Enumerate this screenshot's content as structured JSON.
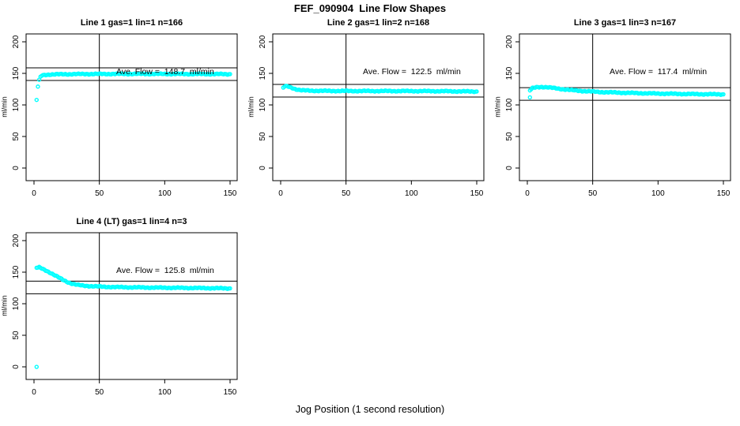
{
  "page": {
    "title": "FEF_090904  Line Flow Shapes",
    "xlabel": "Jog Position (1 second resolution)",
    "background": "#ffffff",
    "axis_color": "#000000"
  },
  "chart_data": [
    {
      "type": "scatter",
      "title": "Line 1 gas=1 lin=1 n=166",
      "ylabel": "ml/min",
      "ave_flow": 148.7,
      "ave_flow_label": "Ave. Flow =  148.7  ml/min",
      "n": 166,
      "point_color": "#00ffff",
      "marker": "open-circle",
      "xlim": [
        -6,
        154.5
      ],
      "ylim": [
        -20,
        212.5
      ],
      "xticks": [
        "0",
        "50",
        "100",
        "150"
      ],
      "yticks": [
        "0",
        "50",
        "100",
        "150",
        "200"
      ],
      "vline_x": 50,
      "hlines": [
        158.7,
        138.7
      ],
      "x_step": 1,
      "points": [
        [
          2,
          108
        ],
        [
          3,
          129
        ],
        [
          4,
          139
        ],
        [
          5,
          144.5
        ],
        [
          6,
          146.5
        ],
        [
          8,
          147.5
        ],
        [
          12,
          148.2
        ],
        [
          20,
          148.6
        ],
        [
          40,
          149
        ],
        [
          80,
          149.2
        ],
        [
          120,
          149
        ],
        [
          150,
          148.8
        ]
      ],
      "extra_points": []
    },
    {
      "type": "scatter",
      "title": "Line 2 gas=1 lin=2 n=168",
      "ylabel": "ml/min",
      "ave_flow": 122.5,
      "ave_flow_label": "Ave. Flow =  122.5  ml/min",
      "n": 168,
      "point_color": "#00ffff",
      "marker": "open-circle",
      "xlim": [
        -6,
        154.5
      ],
      "ylim": [
        -20,
        212.5
      ],
      "xticks": [
        "0",
        "50",
        "100",
        "150"
      ],
      "yticks": [
        "0",
        "50",
        "100",
        "150",
        "200"
      ],
      "vline_x": 50,
      "hlines": [
        132.5,
        112.5
      ],
      "x_step": 1,
      "points": [
        [
          2,
          127.5
        ],
        [
          3,
          129
        ],
        [
          5,
          129.5
        ],
        [
          8,
          127.5
        ],
        [
          12,
          124.8
        ],
        [
          16,
          123.2
        ],
        [
          22,
          122.6
        ],
        [
          35,
          122.2
        ],
        [
          60,
          122
        ],
        [
          90,
          122
        ],
        [
          120,
          121.8
        ],
        [
          150,
          121.2
        ]
      ],
      "extra_points": []
    },
    {
      "type": "scatter",
      "title": "Line 3 gas=1 lin=3 n=167",
      "ylabel": "ml/min",
      "ave_flow": 117.4,
      "ave_flow_label": "Ave. Flow =  117.4  ml/min",
      "n": 167,
      "point_color": "#00ffff",
      "marker": "open-circle",
      "xlim": [
        -6,
        154.5
      ],
      "ylim": [
        -20,
        212.5
      ],
      "xticks": [
        "0",
        "50",
        "100",
        "150"
      ],
      "yticks": [
        "0",
        "50",
        "100",
        "150",
        "200"
      ],
      "vline_x": 50,
      "hlines": [
        127.4,
        107.4
      ],
      "x_step": 1,
      "points": [
        [
          2,
          123
        ],
        [
          4,
          126.5
        ],
        [
          7,
          128
        ],
        [
          11,
          128.5
        ],
        [
          15,
          128
        ],
        [
          20,
          126.8
        ],
        [
          26,
          125.2
        ],
        [
          34,
          123.4
        ],
        [
          44,
          121.8
        ],
        [
          58,
          120.3
        ],
        [
          75,
          119.2
        ],
        [
          95,
          118.2
        ],
        [
          115,
          117.5
        ],
        [
          135,
          117
        ],
        [
          150,
          116.8
        ]
      ],
      "extra_points": [
        [
          2,
          112
        ]
      ]
    },
    {
      "type": "scatter",
      "title": "Line 4 (LT) gas=1 lin=4 n=3",
      "ylabel": "ml/min",
      "ave_flow": 125.8,
      "ave_flow_label": "Ave. Flow =  125.8  ml/min",
      "n": 3,
      "point_color": "#00ffff",
      "marker": "open-circle",
      "xlim": [
        -6,
        154.5
      ],
      "ylim": [
        -20,
        212.5
      ],
      "xticks": [
        "0",
        "50",
        "100",
        "150"
      ],
      "yticks": [
        "0",
        "50",
        "100",
        "150",
        "200"
      ],
      "vline_x": 50,
      "hlines": [
        135.8,
        115.8
      ],
      "x_step": 1,
      "points": [
        [
          2,
          157
        ],
        [
          4,
          157.5
        ],
        [
          6,
          155.8
        ],
        [
          8,
          153.8
        ],
        [
          10,
          151.8
        ],
        [
          13,
          148.5
        ],
        [
          16,
          145
        ],
        [
          19,
          141.5
        ],
        [
          22,
          138
        ],
        [
          25,
          135
        ],
        [
          28,
          132.5
        ],
        [
          31,
          130.8
        ],
        [
          34,
          129.6
        ],
        [
          38,
          128.6
        ],
        [
          44,
          127.8
        ],
        [
          52,
          127
        ],
        [
          62,
          126.4
        ],
        [
          75,
          126
        ],
        [
          90,
          125.6
        ],
        [
          110,
          125.2
        ],
        [
          130,
          124.8
        ],
        [
          150,
          124.3
        ]
      ],
      "extra_points": [
        [
          2,
          0
        ]
      ]
    }
  ]
}
